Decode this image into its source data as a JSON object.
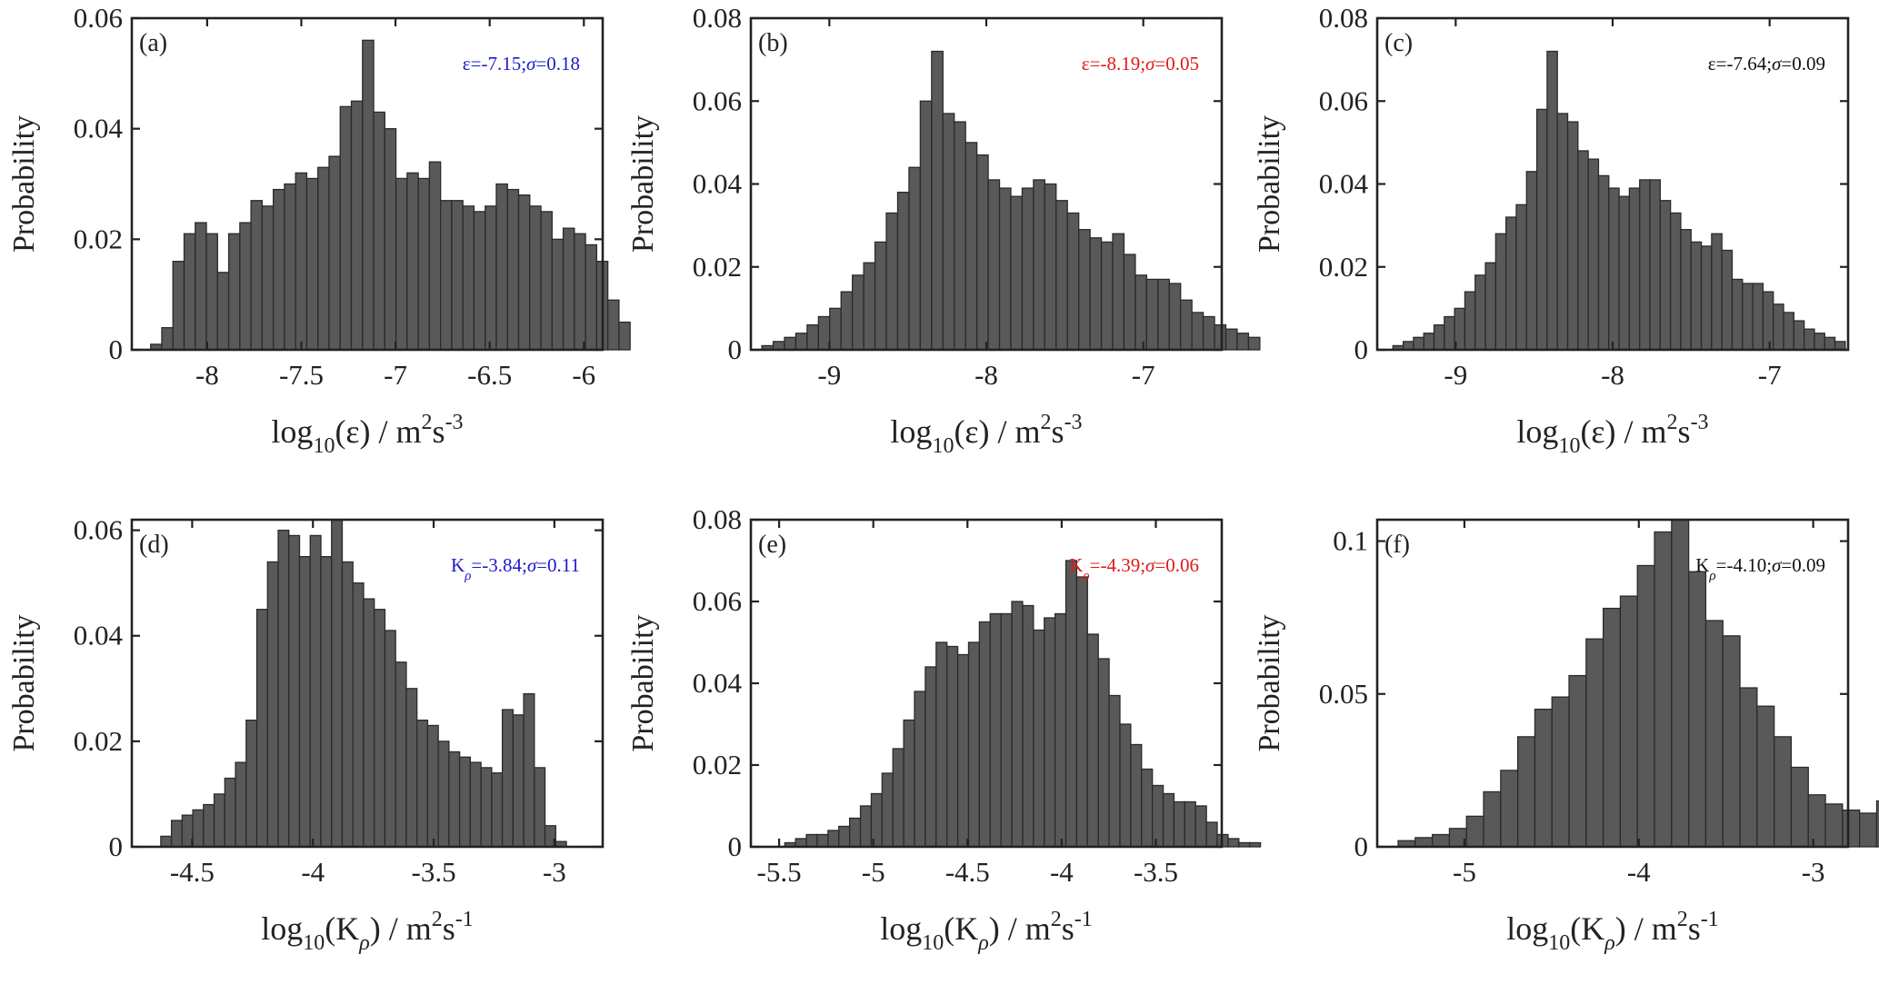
{
  "chart_data": [
    {
      "type": "bar",
      "panel": "(a)",
      "ylabel": "Probability",
      "xlabel": {
        "prefix": "log",
        "base": "10",
        "variable": "(ε)",
        "unit": " / m",
        "unit_sup1": "2",
        "unit_mid": "s",
        "unit_sup2": "-3"
      },
      "annotation": {
        "symbol": "ε",
        "symbol_sub": "",
        "text": "=-7.15;",
        "sigma": "σ",
        "sigma_text": "=0.18",
        "color": "#1a1acc"
      },
      "xlim": [
        -8.4,
        -5.9
      ],
      "ylim": [
        0,
        0.06
      ],
      "xticks": [
        -8,
        -7.5,
        -7,
        -6.5,
        -6
      ],
      "xtick_labels": [
        "-8",
        "-7.5",
        "-7",
        "-6.5",
        "-6"
      ],
      "yticks": [
        0,
        0.02,
        0.04,
        0.06
      ],
      "ytick_labels": [
        "0",
        "0.02",
        "0.04",
        "0.06"
      ],
      "bin_start": -8.3,
      "bin_width": 0.0592,
      "values": [
        0.001,
        0.004,
        0.016,
        0.021,
        0.023,
        0.021,
        0.014,
        0.021,
        0.023,
        0.027,
        0.026,
        0.029,
        0.03,
        0.032,
        0.031,
        0.033,
        0.035,
        0.044,
        0.045,
        0.056,
        0.043,
        0.04,
        0.031,
        0.032,
        0.031,
        0.034,
        0.027,
        0.027,
        0.026,
        0.025,
        0.026,
        0.03,
        0.029,
        0.028,
        0.026,
        0.025,
        0.02,
        0.022,
        0.021,
        0.019,
        0.016,
        0.009,
        0.005
      ]
    },
    {
      "type": "bar",
      "panel": "(b)",
      "ylabel": "Probability",
      "xlabel": {
        "prefix": "log",
        "base": "10",
        "variable": "(ε)",
        "unit": " / m",
        "unit_sup1": "2",
        "unit_mid": "s",
        "unit_sup2": "-3"
      },
      "annotation": {
        "symbol": "ε",
        "symbol_sub": "",
        "text": "=-8.19;",
        "sigma": "σ",
        "sigma_text": "=0.05",
        "color": "#e01818"
      },
      "xlim": [
        -9.5,
        -6.5
      ],
      "ylim": [
        0,
        0.08
      ],
      "xticks": [
        -9,
        -8,
        -7
      ],
      "xtick_labels": [
        "-9",
        "-8",
        "-7"
      ],
      "yticks": [
        0,
        0.02,
        0.04,
        0.06,
        0.08
      ],
      "ytick_labels": [
        "0",
        "0.02",
        "0.04",
        "0.06",
        "0.08"
      ],
      "bin_start": -9.43,
      "bin_width": 0.0721,
      "values": [
        0.001,
        0.002,
        0.003,
        0.004,
        0.006,
        0.008,
        0.01,
        0.014,
        0.018,
        0.021,
        0.026,
        0.033,
        0.038,
        0.044,
        0.06,
        0.072,
        0.057,
        0.055,
        0.05,
        0.047,
        0.041,
        0.039,
        0.037,
        0.039,
        0.041,
        0.04,
        0.036,
        0.033,
        0.029,
        0.027,
        0.026,
        0.028,
        0.023,
        0.018,
        0.017,
        0.017,
        0.016,
        0.012,
        0.009,
        0.008,
        0.006,
        0.005,
        0.004,
        0.003
      ]
    },
    {
      "type": "bar",
      "panel": "(c)",
      "ylabel": "Probability",
      "xlabel": {
        "prefix": "log",
        "base": "10",
        "variable": "(ε)",
        "unit": " / m",
        "unit_sup1": "2",
        "unit_mid": "s",
        "unit_sup2": "-3"
      },
      "annotation": {
        "symbol": "ε",
        "symbol_sub": "",
        "text": "=-7.64;",
        "sigma": "σ",
        "sigma_text": "=0.09",
        "color": "#111111"
      },
      "xlim": [
        -9.5,
        -6.5
      ],
      "ylim": [
        0,
        0.08
      ],
      "xticks": [
        -9,
        -8,
        -7
      ],
      "xtick_labels": [
        "-9",
        "-8",
        "-7"
      ],
      "yticks": [
        0,
        0.02,
        0.04,
        0.06,
        0.08
      ],
      "ytick_labels": [
        "0",
        "0.02",
        "0.04",
        "0.06",
        "0.08"
      ],
      "bin_start": -9.4,
      "bin_width": 0.0655,
      "values": [
        0.001,
        0.002,
        0.003,
        0.004,
        0.006,
        0.008,
        0.01,
        0.014,
        0.018,
        0.021,
        0.028,
        0.032,
        0.035,
        0.043,
        0.058,
        0.072,
        0.057,
        0.055,
        0.048,
        0.046,
        0.042,
        0.039,
        0.037,
        0.039,
        0.041,
        0.041,
        0.036,
        0.033,
        0.029,
        0.026,
        0.025,
        0.028,
        0.024,
        0.017,
        0.016,
        0.016,
        0.014,
        0.011,
        0.009,
        0.007,
        0.005,
        0.004,
        0.003,
        0.002
      ]
    },
    {
      "type": "bar",
      "panel": "(d)",
      "ylabel": "Probability",
      "xlabel": {
        "prefix": "log",
        "base": "10",
        "variable": "(K",
        "variable_sub": "ρ",
        "variable_end": ")",
        "unit": " / m",
        "unit_sup1": "2",
        "unit_mid": "s",
        "unit_sup2": "-1"
      },
      "annotation": {
        "symbol": "K",
        "symbol_sub": "ρ",
        "text": "=-3.84;",
        "sigma": "σ",
        "sigma_text": "=0.11",
        "color": "#1a1acc"
      },
      "xlim": [
        -4.75,
        -2.8
      ],
      "ylim": [
        0,
        0.062
      ],
      "xticks": [
        -4.5,
        -4,
        -3.5,
        -3
      ],
      "xtick_labels": [
        "-4.5",
        "-4",
        "-3.5",
        "-3"
      ],
      "yticks": [
        0,
        0.02,
        0.04,
        0.06
      ],
      "ytick_labels": [
        "0",
        "0.02",
        "0.04",
        "0.06"
      ],
      "bin_start": -4.63,
      "bin_width": 0.0442,
      "values": [
        0.002,
        0.005,
        0.006,
        0.007,
        0.008,
        0.01,
        0.013,
        0.016,
        0.024,
        0.045,
        0.054,
        0.06,
        0.059,
        0.055,
        0.059,
        0.055,
        0.062,
        0.054,
        0.05,
        0.047,
        0.045,
        0.041,
        0.035,
        0.03,
        0.024,
        0.023,
        0.02,
        0.018,
        0.017,
        0.016,
        0.015,
        0.014,
        0.026,
        0.025,
        0.029,
        0.015,
        0.004,
        0.001
      ]
    },
    {
      "type": "bar",
      "panel": "(e)",
      "ylabel": "Probability",
      "xlabel": {
        "prefix": "log",
        "base": "10",
        "variable": "(K",
        "variable_sub": "ρ",
        "variable_end": ")",
        "unit": " / m",
        "unit_sup1": "2",
        "unit_mid": "s",
        "unit_sup2": "-1"
      },
      "annotation": {
        "symbol": "K",
        "symbol_sub": "ρ",
        "text": "=-4.39;",
        "sigma": "σ",
        "sigma_text": "=0.06",
        "color": "#e01818"
      },
      "xlim": [
        -5.65,
        -3.15
      ],
      "ylim": [
        0,
        0.08
      ],
      "xticks": [
        -5.5,
        -5,
        -4.5,
        -4,
        -3.5
      ],
      "xtick_labels": [
        "-5.5",
        "-5",
        "-4.5",
        "-4",
        "-3.5"
      ],
      "yticks": [
        0,
        0.02,
        0.04,
        0.06,
        0.08
      ],
      "ytick_labels": [
        "0",
        "0.02",
        "0.04",
        "0.06",
        "0.08"
      ],
      "bin_start": -5.47,
      "bin_width": 0.0574,
      "values": [
        0.001,
        0.002,
        0.003,
        0.003,
        0.004,
        0.005,
        0.007,
        0.01,
        0.013,
        0.018,
        0.024,
        0.031,
        0.038,
        0.044,
        0.05,
        0.049,
        0.047,
        0.05,
        0.055,
        0.057,
        0.057,
        0.06,
        0.059,
        0.053,
        0.056,
        0.057,
        0.07,
        0.066,
        0.052,
        0.046,
        0.037,
        0.03,
        0.025,
        0.019,
        0.015,
        0.013,
        0.011,
        0.011,
        0.01,
        0.006,
        0.003,
        0.002,
        0.001,
        0.001
      ]
    },
    {
      "type": "bar",
      "panel": "(f)",
      "ylabel": "Probability",
      "xlabel": {
        "prefix": "log",
        "base": "10",
        "variable": "(K",
        "variable_sub": "ρ",
        "variable_end": ")",
        "unit": " / m",
        "unit_sup1": "2",
        "unit_mid": "s",
        "unit_sup2": "-1"
      },
      "annotation": {
        "symbol": "K",
        "symbol_sub": "ρ",
        "text": "=-4.10;",
        "sigma": "σ",
        "sigma_text": "=0.09",
        "color": "#111111"
      },
      "xlim": [
        -5.5,
        -2.8
      ],
      "ylim": [
        0,
        0.107
      ],
      "xticks": [
        -5,
        -4,
        -3
      ],
      "xtick_labels": [
        "-5",
        "-4",
        "-3"
      ],
      "yticks": [
        0,
        0.05,
        0.1
      ],
      "ytick_labels": [
        "0",
        "0.05",
        "0.1"
      ],
      "bin_start": -5.38,
      "bin_width": 0.098,
      "values": [
        0.002,
        0.003,
        0.004,
        0.006,
        0.01,
        0.018,
        0.025,
        0.036,
        0.045,
        0.049,
        0.056,
        0.068,
        0.078,
        0.082,
        0.092,
        0.103,
        0.107,
        0.09,
        0.074,
        0.069,
        0.052,
        0.046,
        0.036,
        0.026,
        0.017,
        0.014,
        0.012,
        0.011,
        0.015,
        0.014
      ]
    }
  ]
}
